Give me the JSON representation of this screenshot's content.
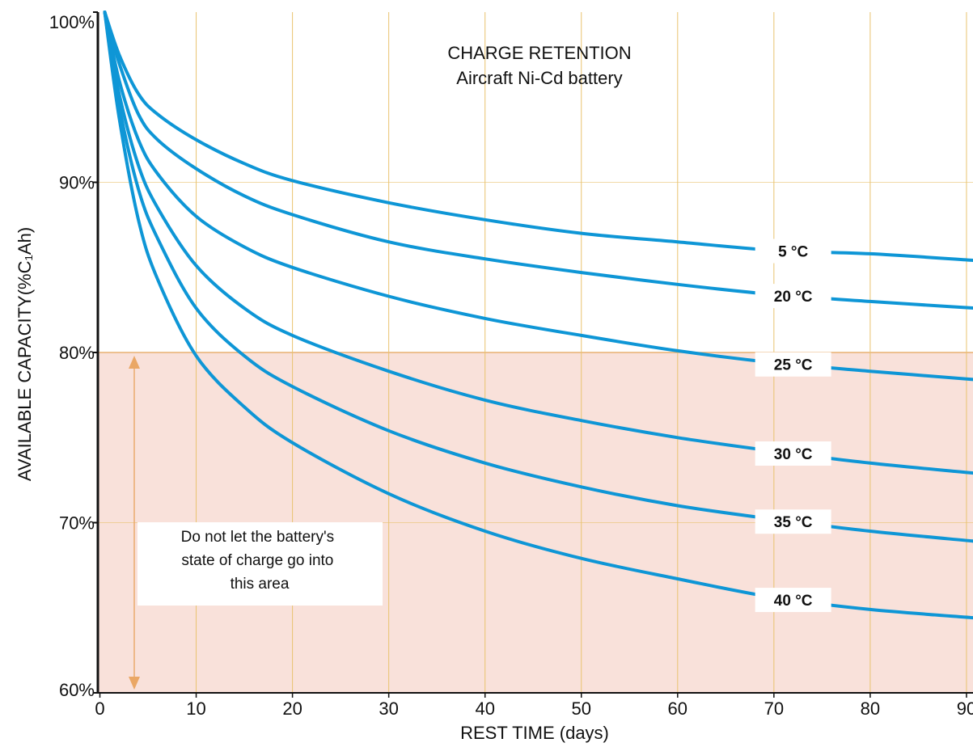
{
  "colors": {
    "curve": "#0e96d6",
    "grid": "#e9c36f",
    "danger_fill": "#f9e1da",
    "danger_border": "#e9b070",
    "arrow": "#eaa765",
    "axis": "#111111"
  },
  "chart_data": {
    "type": "line",
    "title": "CHARGE RETENTION",
    "subtitle": "Aircraft Ni-Cd battery",
    "xlabel": "REST TIME (days)",
    "ylabel": "AVAILABLE CAPACITY(%C₁Ah)",
    "xlim": [
      0,
      91
    ],
    "ylim": [
      60,
      100
    ],
    "x_ticks": [
      0,
      10,
      20,
      30,
      40,
      50,
      60,
      70,
      80,
      90
    ],
    "x_tick_labels": [
      "0",
      "10",
      "20",
      "30",
      "40",
      "50",
      "60",
      "70",
      "80",
      "90"
    ],
    "y_ticks": [
      60,
      70,
      80,
      90,
      100
    ],
    "y_tick_labels": [
      "60%",
      "70%",
      "80%",
      "90%",
      "100%"
    ],
    "grid": true,
    "shaded_region": {
      "y_from": 60,
      "y_to": 80,
      "note": "Do not let the battery's state of charge go into this area"
    },
    "series": [
      {
        "name": "5 °C",
        "x": [
          0.5,
          2,
          4,
          6,
          10,
          15,
          20,
          30,
          40,
          50,
          60,
          70,
          80,
          91
        ],
        "y": [
          100,
          97.5,
          95.2,
          94.0,
          92.5,
          91.1,
          90.1,
          88.8,
          87.8,
          87.0,
          86.5,
          86.0,
          85.8,
          85.4
        ]
      },
      {
        "name": "20 °C",
        "x": [
          0.5,
          2,
          4,
          6,
          10,
          15,
          20,
          30,
          40,
          50,
          60,
          70,
          80,
          91
        ],
        "y": [
          100,
          97.0,
          94.0,
          92.5,
          90.8,
          89.2,
          88.1,
          86.5,
          85.5,
          84.7,
          84.0,
          83.4,
          83.0,
          82.6
        ]
      },
      {
        "name": "25 °C",
        "x": [
          0.5,
          2,
          4,
          6,
          10,
          15,
          20,
          30,
          40,
          50,
          60,
          70,
          80,
          91
        ],
        "y": [
          100,
          96.0,
          92.5,
          90.5,
          88.0,
          86.2,
          85.0,
          83.3,
          82.0,
          81.0,
          80.1,
          79.4,
          78.9,
          78.4
        ]
      },
      {
        "name": "30 °C",
        "x": [
          0.5,
          2,
          4,
          6,
          10,
          15,
          20,
          30,
          40,
          50,
          60,
          70,
          80,
          91
        ],
        "y": [
          100,
          95.2,
          91.0,
          88.5,
          85.1,
          82.6,
          81.0,
          78.9,
          77.2,
          76.0,
          75.0,
          74.2,
          73.5,
          72.9
        ]
      },
      {
        "name": "35 °C",
        "x": [
          0.5,
          2,
          4,
          6,
          10,
          15,
          20,
          30,
          40,
          50,
          60,
          70,
          80,
          91
        ],
        "y": [
          100,
          94.5,
          89.6,
          86.7,
          82.6,
          79.8,
          78.0,
          75.4,
          73.5,
          72.1,
          71.0,
          70.2,
          69.5,
          68.9
        ]
      },
      {
        "name": "40 °C",
        "x": [
          0.5,
          2,
          4,
          6,
          10,
          15,
          20,
          30,
          40,
          50,
          60,
          70,
          80,
          91
        ],
        "y": [
          100,
          93.8,
          87.8,
          84.3,
          79.8,
          76.8,
          74.7,
          71.7,
          69.5,
          67.9,
          66.7,
          65.6,
          64.9,
          64.4
        ]
      }
    ]
  }
}
